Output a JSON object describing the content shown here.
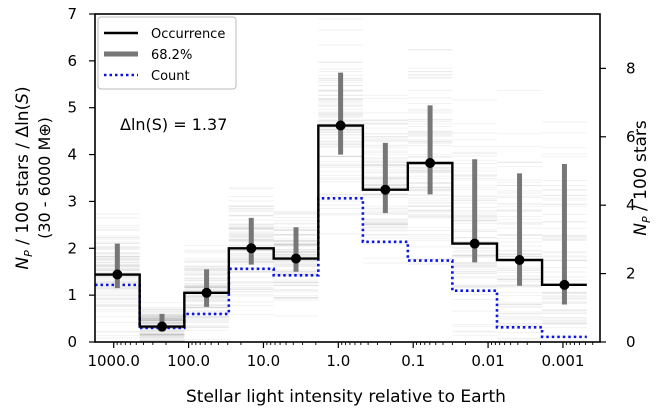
{
  "chart_data": {
    "type": "line",
    "title": "",
    "xlabel": "Stellar light intensity relative to Earth",
    "ylabel_left_line1": "N_P / 100 stars / Δln(S)",
    "ylabel_left_line2": "(30 - 6000 M⊕)",
    "ylabel_right": "N_P / 100 stars",
    "xscale": "log, reversed",
    "xlim": [
      1778,
      0.00032
    ],
    "ylim": [
      0,
      7
    ],
    "ylim_right": [
      0,
      9.59
    ],
    "x_ticks": [
      1000,
      100,
      10,
      1,
      0.1,
      0.01,
      0.001
    ],
    "x_tick_labels": [
      "1000.0",
      "100.0",
      "10.0",
      "1.0",
      "0.1",
      "0.01",
      "0.001"
    ],
    "y_ticks": [
      0,
      1,
      2,
      3,
      4,
      5,
      6,
      7
    ],
    "y_tick_labels": [
      "0",
      "1",
      "2",
      "3",
      "4",
      "5",
      "6",
      "7"
    ],
    "y2_ticks": [
      0,
      2,
      4,
      6,
      8
    ],
    "y2_tick_labels": [
      "0",
      "2",
      "4",
      "6",
      "8"
    ],
    "annotation": "Δln(S) = 1.37",
    "bin_edges": [
      1778,
      450,
      114,
      29,
      7.3,
      1.85,
      0.47,
      0.118,
      0.03,
      0.0076,
      0.0019,
      0.00048
    ],
    "series": [
      {
        "name": "Occurrence",
        "style": "step",
        "color": "#000000",
        "values": [
          1.44,
          0.33,
          1.05,
          2.0,
          1.78,
          4.62,
          3.25,
          3.82,
          2.1,
          1.75,
          1.22
        ]
      },
      {
        "name": "68.2%",
        "style": "errorbar",
        "color": "#777777",
        "lower": [
          1.15,
          0.22,
          0.75,
          1.65,
          1.5,
          4.0,
          2.75,
          3.15,
          1.7,
          1.2,
          0.8
        ],
        "upper": [
          2.1,
          0.6,
          1.55,
          2.65,
          2.45,
          5.75,
          4.25,
          5.05,
          3.9,
          3.6,
          3.8
        ]
      },
      {
        "name": "Count",
        "style": "step-dotted",
        "color": "#0a14e6",
        "axis": "right",
        "values": [
          1.67,
          0.41,
          0.82,
          2.14,
          1.95,
          4.2,
          2.93,
          2.38,
          1.5,
          0.43,
          0.15
        ]
      }
    ],
    "legend_position": "top-left",
    "grid": false
  },
  "colors": {
    "occurrence": "#000000",
    "interval": "#777777",
    "count": "#0a14e6",
    "posterior": "#9a9a9a"
  }
}
